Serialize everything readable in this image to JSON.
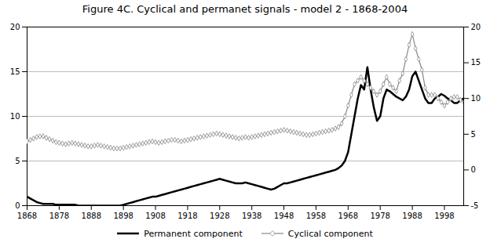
{
  "chart_data": {
    "type": "line",
    "title": "Figure 4C. Cyclical and permanet signals - model 2 - 1868-2004",
    "x": [
      1868,
      1869,
      1870,
      1871,
      1872,
      1873,
      1874,
      1875,
      1876,
      1877,
      1878,
      1879,
      1880,
      1881,
      1882,
      1883,
      1884,
      1885,
      1886,
      1887,
      1888,
      1889,
      1890,
      1891,
      1892,
      1893,
      1894,
      1895,
      1896,
      1897,
      1898,
      1899,
      1900,
      1901,
      1902,
      1903,
      1904,
      1905,
      1906,
      1907,
      1908,
      1909,
      1910,
      1911,
      1912,
      1913,
      1914,
      1915,
      1916,
      1917,
      1918,
      1919,
      1920,
      1921,
      1922,
      1923,
      1924,
      1925,
      1926,
      1927,
      1928,
      1929,
      1930,
      1931,
      1932,
      1933,
      1934,
      1935,
      1936,
      1937,
      1938,
      1939,
      1940,
      1941,
      1942,
      1943,
      1944,
      1945,
      1946,
      1947,
      1948,
      1949,
      1950,
      1951,
      1952,
      1953,
      1954,
      1955,
      1956,
      1957,
      1958,
      1959,
      1960,
      1961,
      1962,
      1963,
      1964,
      1965,
      1966,
      1967,
      1968,
      1969,
      1970,
      1971,
      1972,
      1973,
      1974,
      1975,
      1976,
      1977,
      1978,
      1979,
      1980,
      1981,
      1982,
      1983,
      1984,
      1985,
      1986,
      1987,
      1988,
      1989,
      1990,
      1991,
      1992,
      1993,
      1994,
      1995,
      1996,
      1997,
      1998,
      1999,
      2000,
      2001,
      2002,
      2003,
      2004
    ],
    "series": [
      {
        "name": "Permanent component",
        "color": "#000000",
        "axis": "y",
        "values": [
          1.0,
          0.8,
          0.6,
          0.4,
          0.3,
          0.2,
          0.2,
          0.2,
          0.2,
          0.1,
          0.1,
          0.1,
          0.1,
          0.1,
          0.1,
          0.1,
          0.0,
          0.0,
          0.0,
          0.0,
          0.0,
          0.0,
          0.0,
          0.0,
          0.0,
          0.0,
          0.0,
          0.0,
          0.0,
          0.0,
          0.1,
          0.2,
          0.3,
          0.4,
          0.5,
          0.6,
          0.7,
          0.8,
          0.9,
          1.0,
          1.0,
          1.1,
          1.2,
          1.3,
          1.4,
          1.5,
          1.6,
          1.7,
          1.8,
          1.9,
          2.0,
          2.1,
          2.2,
          2.3,
          2.4,
          2.5,
          2.6,
          2.7,
          2.8,
          2.9,
          3.0,
          2.9,
          2.8,
          2.7,
          2.6,
          2.5,
          2.5,
          2.5,
          2.6,
          2.5,
          2.4,
          2.3,
          2.2,
          2.1,
          2.0,
          1.9,
          1.8,
          1.9,
          2.1,
          2.3,
          2.5,
          2.5,
          2.6,
          2.7,
          2.8,
          2.9,
          3.0,
          3.1,
          3.2,
          3.3,
          3.4,
          3.5,
          3.6,
          3.7,
          3.8,
          3.9,
          4.0,
          4.2,
          4.5,
          5.0,
          6.0,
          8.0,
          10.0,
          12.0,
          13.5,
          13.0,
          15.5,
          13.0,
          11.0,
          9.5,
          10.0,
          12.0,
          13.0,
          12.8,
          12.5,
          12.2,
          12.0,
          11.8,
          12.2,
          13.0,
          14.5,
          15.0,
          14.0,
          13.0,
          12.0,
          11.5,
          11.5,
          12.0,
          12.2,
          12.5,
          12.3,
          12.0,
          11.8,
          11.5,
          11.5,
          11.8,
          12.0
        ]
      },
      {
        "name": "Cyclical component",
        "color": "#888888",
        "axis": "y2",
        "marker": "diamond",
        "values": [
          4.0,
          4.2,
          4.4,
          4.6,
          4.7,
          4.7,
          4.5,
          4.3,
          4.1,
          3.9,
          3.8,
          3.7,
          3.6,
          3.7,
          3.8,
          3.7,
          3.6,
          3.5,
          3.4,
          3.3,
          3.3,
          3.4,
          3.5,
          3.4,
          3.3,
          3.2,
          3.1,
          3.0,
          3.0,
          3.0,
          3.1,
          3.2,
          3.3,
          3.4,
          3.5,
          3.6,
          3.7,
          3.8,
          3.9,
          4.0,
          3.9,
          3.8,
          3.9,
          4.0,
          4.1,
          4.2,
          4.2,
          4.1,
          4.0,
          4.1,
          4.2,
          4.3,
          4.4,
          4.5,
          4.6,
          4.7,
          4.8,
          4.9,
          5.0,
          5.1,
          5.0,
          4.9,
          4.8,
          4.7,
          4.6,
          4.5,
          4.4,
          4.5,
          4.6,
          4.5,
          4.6,
          4.7,
          4.8,
          4.9,
          5.0,
          5.1,
          5.2,
          5.3,
          5.4,
          5.5,
          5.6,
          5.5,
          5.4,
          5.3,
          5.2,
          5.1,
          5.0,
          4.9,
          4.9,
          5.0,
          5.1,
          5.2,
          5.3,
          5.4,
          5.5,
          5.6,
          5.8,
          6.0,
          6.5,
          7.5,
          9.0,
          10.5,
          12.0,
          12.5,
          13.0,
          12.5,
          12.0,
          11.5,
          11.0,
          10.5,
          11.0,
          12.0,
          13.0,
          12.0,
          11.5,
          11.0,
          12.5,
          13.5,
          15.5,
          17.5,
          19.0,
          17.0,
          15.5,
          14.0,
          11.5,
          10.5,
          10.5,
          10.5,
          10.0,
          9.5,
          9.0,
          9.5,
          10.0,
          10.2,
          10.2,
          9.8,
          9.5
        ]
      }
    ],
    "xlim": [
      1868,
      2004
    ],
    "xticks": [
      1868,
      1878,
      1888,
      1898,
      1908,
      1918,
      1928,
      1938,
      1948,
      1958,
      1968,
      1978,
      1988,
      1998
    ],
    "ylim": [
      0,
      20
    ],
    "yticks": [
      0,
      5,
      10,
      15,
      20
    ],
    "y2lim": [
      -5,
      20
    ],
    "y2ticks": [
      -5,
      0,
      5,
      10,
      15,
      20
    ],
    "grid": true,
    "legend": "bottom"
  }
}
